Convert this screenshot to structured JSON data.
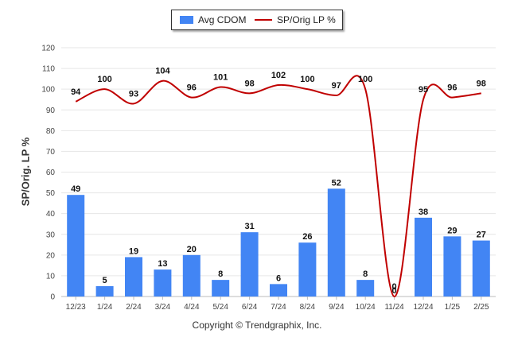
{
  "chart_data": {
    "type": "bar",
    "categories": [
      "12/23",
      "1/24",
      "2/24",
      "3/24",
      "4/24",
      "5/24",
      "6/24",
      "7/24",
      "8/24",
      "9/24",
      "10/24",
      "11/24",
      "12/24",
      "1/25",
      "2/25"
    ],
    "series": [
      {
        "name": "Avg CDOM",
        "kind": "bar",
        "color": "#4285f4",
        "values": [
          49,
          5,
          19,
          13,
          20,
          8,
          31,
          6,
          26,
          52,
          8,
          0,
          38,
          29,
          27
        ]
      },
      {
        "name": "SP/Orig LP %",
        "kind": "line",
        "color": "#c00000",
        "values": [
          94,
          100,
          93,
          104,
          96,
          101,
          98,
          102,
          100,
          97,
          100,
          0,
          95,
          96,
          98
        ]
      }
    ],
    "ylabel": "SP/Orig. LP %",
    "ylim": [
      0,
      120
    ],
    "yticks": [
      0,
      10,
      20,
      30,
      40,
      50,
      60,
      70,
      80,
      90,
      100,
      110,
      120
    ],
    "grid": true,
    "legend": "top-center"
  },
  "footer": {
    "copyright": "Copyright © Trendgraphix, Inc."
  }
}
